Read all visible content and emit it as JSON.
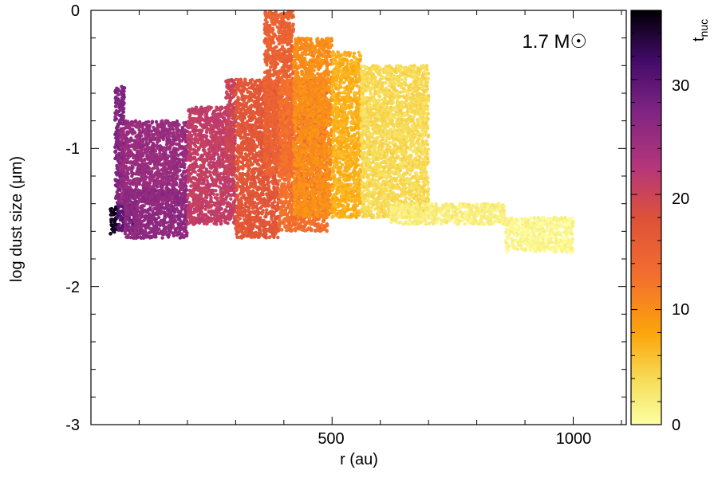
{
  "chart_data": {
    "type": "scatter",
    "title": "",
    "xlabel": "r (au)",
    "ylabel": "log dust size (μm)",
    "xlim": [
      0,
      1110
    ],
    "ylim": [
      -3,
      0
    ],
    "xticks": [
      500,
      1000
    ],
    "xtick_labels": [
      "500",
      "1000"
    ],
    "yticks": [
      0,
      -1,
      -2,
      -3
    ],
    "ytick_labels": [
      "0",
      "-1",
      "-2",
      "-3"
    ],
    "annotation": "1.7 M☉",
    "annotation_position": "top-right",
    "grid": false,
    "legend": "none",
    "colorbar": {
      "label_main": "t",
      "label_sub": "nuc",
      "range": [
        0,
        36
      ],
      "ticks": [
        0,
        10,
        20,
        30
      ],
      "tick_labels": [
        "0",
        "10",
        "20",
        "30"
      ],
      "colormap": "inferno (reversed: light yellow at 0, black at max)"
    },
    "clusters": [
      {
        "r_range": [
          40,
          55
        ],
        "size_range": [
          -1.62,
          -1.42
        ],
        "tnuc": 35
      },
      {
        "r_range": [
          55,
          90
        ],
        "size_range": [
          -1.6,
          -1.4
        ],
        "tnuc": 30
      },
      {
        "r_range": [
          50,
          70
        ],
        "size_range": [
          -1.4,
          -0.55
        ],
        "tnuc": 27
      },
      {
        "r_range": [
          60,
          200
        ],
        "size_range": [
          -1.4,
          -0.8
        ],
        "tnuc": 25
      },
      {
        "r_range": [
          70,
          200
        ],
        "size_range": [
          -1.65,
          -1.3
        ],
        "tnuc": 26
      },
      {
        "r_range": [
          200,
          300
        ],
        "size_range": [
          -1.55,
          -0.7
        ],
        "tnuc": 21
      },
      {
        "r_range": [
          280,
          300
        ],
        "size_range": [
          -1.2,
          -0.5
        ],
        "tnuc": 20
      },
      {
        "r_range": [
          300,
          390
        ],
        "size_range": [
          -1.65,
          -0.5
        ],
        "tnuc": 17
      },
      {
        "r_range": [
          360,
          420
        ],
        "size_range": [
          -1.2,
          0.0
        ],
        "tnuc": 15
      },
      {
        "r_range": [
          390,
          490
        ],
        "size_range": [
          -1.6,
          -0.5
        ],
        "tnuc": 13
      },
      {
        "r_range": [
          420,
          500
        ],
        "size_range": [
          -1.5,
          -0.2
        ],
        "tnuc": 10
      },
      {
        "r_range": [
          500,
          560
        ],
        "size_range": [
          -1.5,
          -0.3
        ],
        "tnuc": 7
      },
      {
        "r_range": [
          560,
          700
        ],
        "size_range": [
          -1.5,
          -0.4
        ],
        "tnuc": 4
      },
      {
        "r_range": [
          620,
          860
        ],
        "size_range": [
          -1.55,
          -1.4
        ],
        "tnuc": 2
      },
      {
        "r_range": [
          860,
          1000
        ],
        "size_range": [
          -1.75,
          -1.5
        ],
        "tnuc": 1
      }
    ]
  }
}
